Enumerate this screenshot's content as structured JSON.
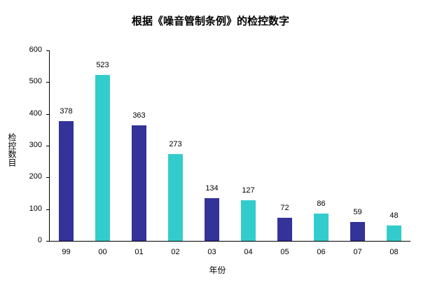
{
  "chart_data": {
    "type": "bar",
    "title": "根据《噪音管制条例》的检控数字",
    "xlabel": "年份",
    "ylabel": "检控数目",
    "categories": [
      "99",
      "00",
      "01",
      "02",
      "03",
      "04",
      "05",
      "06",
      "07",
      "08"
    ],
    "values": [
      378,
      523,
      363,
      273,
      134,
      127,
      72,
      86,
      59,
      48
    ],
    "ylim": [
      0,
      600
    ],
    "yticks": [
      0,
      100,
      200,
      300,
      400,
      500,
      600
    ],
    "grid": false,
    "legend": "none",
    "colors": [
      "#333399",
      "#33CCCC"
    ],
    "data_labels": true
  }
}
